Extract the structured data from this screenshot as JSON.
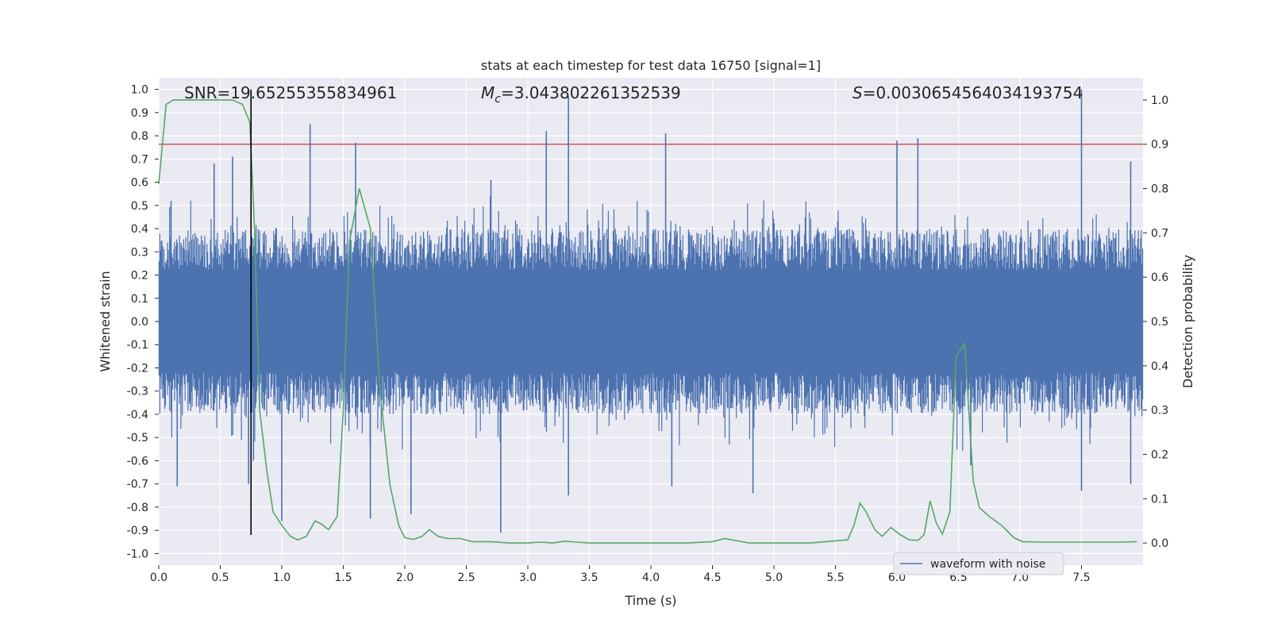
{
  "chart_data": {
    "type": "line",
    "title": "stats at each timestep for test data 16750 [signal=1]",
    "xlabel": "Time (s)",
    "ylabel": "Whitened strain",
    "y2label": "Detection probability",
    "xlim": [
      0,
      8
    ],
    "ylim": [
      -1.05,
      1.05
    ],
    "y2lim": [
      -0.05,
      1.05
    ],
    "x_ticks": [
      0.0,
      0.5,
      1.0,
      1.5,
      2.0,
      2.5,
      3.0,
      3.5,
      4.0,
      4.5,
      5.0,
      5.5,
      6.0,
      6.5,
      7.0,
      7.5
    ],
    "x_tick_labels": [
      "0.0",
      "0.5",
      "1.0",
      "1.5",
      "2.0",
      "2.5",
      "3.0",
      "3.5",
      "4.0",
      "4.5",
      "5.0",
      "5.5",
      "6.0",
      "6.5",
      "7.0",
      "7.5"
    ],
    "y_ticks": [
      1.0,
      0.9,
      0.8,
      0.7,
      0.6,
      0.5,
      0.4,
      0.3,
      0.2,
      0.1,
      0.0,
      -0.1,
      -0.2,
      -0.3,
      -0.4,
      -0.5,
      -0.6,
      -0.7,
      -0.8,
      -0.9,
      -1.0
    ],
    "y_tick_labels": [
      "1.0",
      "0.9",
      "0.8",
      "0.7",
      "0.6",
      "0.5",
      "0.4",
      "0.3",
      "0.2",
      "0.1",
      "0.0",
      "-0.1",
      "-0.2",
      "-0.3",
      "-0.4",
      "-0.5",
      "-0.6",
      "-0.7",
      "-0.8",
      "-0.9",
      "-1.0"
    ],
    "y2_ticks": [
      1.0,
      0.9,
      0.8,
      0.7,
      0.6,
      0.5,
      0.4,
      0.3,
      0.2,
      0.1,
      0.0
    ],
    "y2_tick_labels": [
      "1.0",
      "0.9",
      "0.8",
      "0.7",
      "0.6",
      "0.5",
      "0.4",
      "0.3",
      "0.2",
      "0.1",
      "0.0"
    ],
    "grid": true,
    "legend": {
      "entries": [
        "waveform with noise"
      ],
      "placement": "lower-right"
    },
    "annotations": {
      "snr_text": "SNR=19.65255355834961",
      "mc_symbol": "M",
      "mc_subscript": "c",
      "mc_value": "=3.043802261352539",
      "s_symbol": "S",
      "s_value": "=0.0030654564034193754"
    },
    "threshold_line": {
      "y2": 0.9,
      "color": "#c44e52"
    },
    "marker_line": {
      "x": 0.75,
      "y_range": [
        -0.92,
        1.0
      ],
      "color": "#000000"
    },
    "waveform_envelope": {
      "name": "waveform with noise",
      "color": "#4c72b0",
      "typical_amplitude": 0.4,
      "spikes": [
        {
          "x": 0.1,
          "y": 0.52
        },
        {
          "x": 0.15,
          "y": -0.71
        },
        {
          "x": 0.45,
          "y": 0.68
        },
        {
          "x": 0.6,
          "y": 0.71
        },
        {
          "x": 0.73,
          "y": -0.7
        },
        {
          "x": 0.77,
          "y": -0.6
        },
        {
          "x": 1.0,
          "y": -0.86
        },
        {
          "x": 1.23,
          "y": 0.85
        },
        {
          "x": 1.6,
          "y": 0.77
        },
        {
          "x": 1.72,
          "y": -0.85
        },
        {
          "x": 2.05,
          "y": -0.83
        },
        {
          "x": 2.7,
          "y": 0.61
        },
        {
          "x": 2.78,
          "y": -0.91
        },
        {
          "x": 3.15,
          "y": 0.82
        },
        {
          "x": 3.33,
          "y": 0.97
        },
        {
          "x": 3.33,
          "y": -0.75
        },
        {
          "x": 4.12,
          "y": 0.81
        },
        {
          "x": 4.17,
          "y": -0.71
        },
        {
          "x": 4.83,
          "y": -0.74
        },
        {
          "x": 6.0,
          "y": 0.78
        },
        {
          "x": 6.17,
          "y": 0.79
        },
        {
          "x": 6.6,
          "y": -0.62
        },
        {
          "x": 7.5,
          "y": 1.0
        },
        {
          "x": 7.5,
          "y": -0.73
        },
        {
          "x": 7.9,
          "y": 0.69
        },
        {
          "x": 7.9,
          "y": -0.7
        }
      ]
    },
    "probability_series": {
      "color": "#55a868",
      "x": [
        0.0,
        0.06,
        0.12,
        0.2,
        0.3,
        0.4,
        0.5,
        0.6,
        0.68,
        0.74,
        0.78,
        0.82,
        0.88,
        0.93,
        1.0,
        1.07,
        1.13,
        1.2,
        1.27,
        1.32,
        1.38,
        1.45,
        1.5,
        1.55,
        1.63,
        1.72,
        1.8,
        1.88,
        1.95,
        2.0,
        2.07,
        2.14,
        2.2,
        2.27,
        2.35,
        2.45,
        2.55,
        2.7,
        2.85,
        3.0,
        3.1,
        3.2,
        3.3,
        3.4,
        3.5,
        3.7,
        4.0,
        4.3,
        4.5,
        4.6,
        4.8,
        5.0,
        5.3,
        5.5,
        5.6,
        5.65,
        5.7,
        5.75,
        5.82,
        5.88,
        5.95,
        6.02,
        6.1,
        6.17,
        6.22,
        6.27,
        6.32,
        6.37,
        6.43,
        6.48,
        6.55,
        6.62,
        6.67,
        6.75,
        6.85,
        6.95,
        7.02,
        7.2,
        7.5,
        7.8,
        7.95
      ],
      "y": [
        0.81,
        0.99,
        1.0,
        1.0,
        1.0,
        1.0,
        1.0,
        1.0,
        0.99,
        0.95,
        0.7,
        0.3,
        0.16,
        0.07,
        0.04,
        0.015,
        0.007,
        0.015,
        0.05,
        0.043,
        0.03,
        0.06,
        0.3,
        0.68,
        0.8,
        0.71,
        0.34,
        0.13,
        0.04,
        0.012,
        0.008,
        0.015,
        0.03,
        0.015,
        0.01,
        0.01,
        0.003,
        0.003,
        0.0,
        0.0,
        0.002,
        0.0,
        0.004,
        0.002,
        0.0,
        0.0,
        0.0,
        0.0,
        0.003,
        0.01,
        0.0,
        0.0,
        0.0,
        0.005,
        0.007,
        0.04,
        0.09,
        0.07,
        0.03,
        0.015,
        0.035,
        0.02,
        0.007,
        0.006,
        0.018,
        0.095,
        0.045,
        0.02,
        0.07,
        0.42,
        0.45,
        0.14,
        0.08,
        0.06,
        0.04,
        0.012,
        0.003,
        0.002,
        0.002,
        0.002,
        0.003
      ]
    }
  }
}
